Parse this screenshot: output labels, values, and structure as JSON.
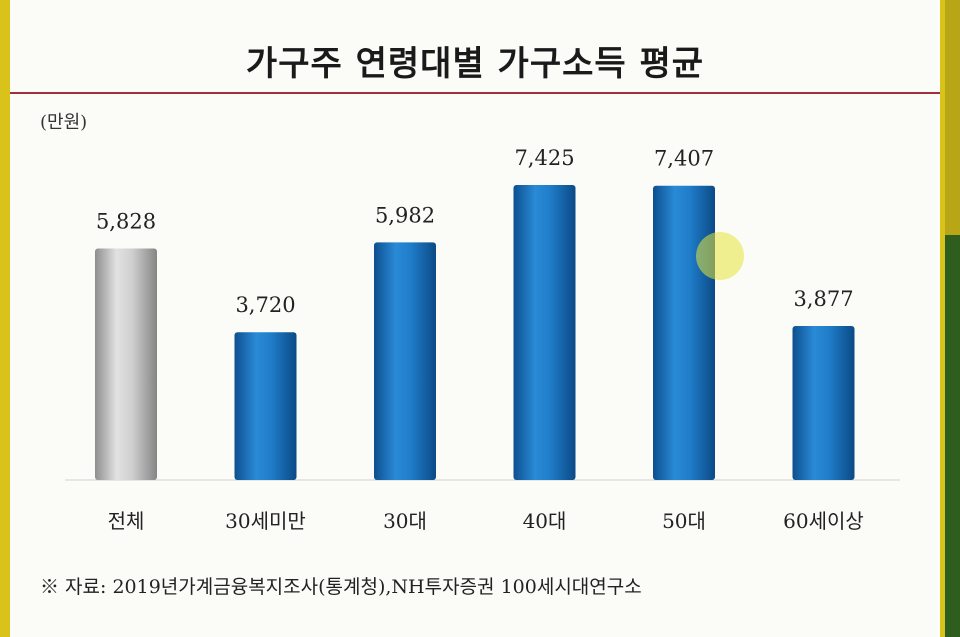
{
  "title": "가구주 연령대별 가구소득 평균",
  "unit": "(만원)",
  "source": "※ 자료: 2019년가계금융복지조사(통계청),NH투자증권 100세시대연구소",
  "colors": {
    "highlight": "#b5b5b5",
    "bar": "#1a73c0",
    "border": "#d9c21a",
    "rule": "#a0303a"
  },
  "chart_data": {
    "type": "bar",
    "title": "가구주 연령대별 가구소득 평균",
    "ylabel": "(만원)",
    "categories": [
      "전체",
      "30세미만",
      "30대",
      "40대",
      "50대",
      "60세이상"
    ],
    "values": [
      5828,
      3720,
      5982,
      7425,
      7407,
      3877
    ],
    "labels": [
      "5,828",
      "3,720",
      "5,982",
      "7,425",
      "7,407",
      "3,877"
    ],
    "ylim": [
      0,
      8000
    ],
    "grid": false
  }
}
